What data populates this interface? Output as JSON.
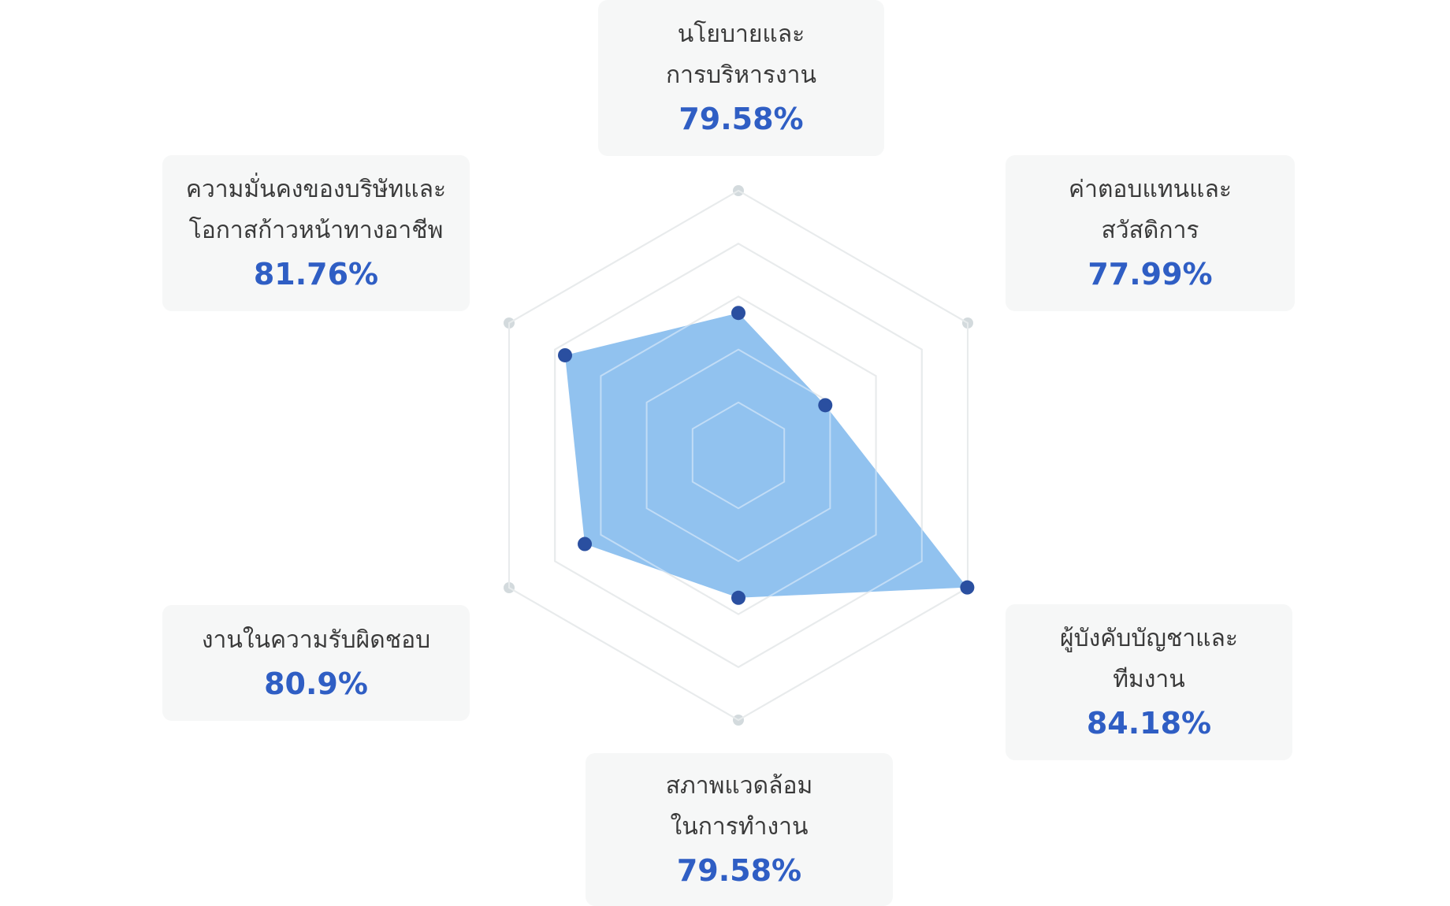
{
  "chart_data": {
    "type": "radar",
    "categories": [
      [
        "นโยบายและ",
        "การบริหารงาน"
      ],
      [
        "ค่าตอบแทนและ",
        "สวัสดิการ"
      ],
      [
        "ผู้บังคับบัญชาและ",
        "ทีมงาน"
      ],
      [
        "สภาพแวดล้อม",
        "ในการทำงาน"
      ],
      [
        "งานในความรับผิดชอบ"
      ],
      [
        "ความมั่นคงของบริษัทและ",
        "โอกาสก้าวหน้าทางอาชีพ"
      ]
    ],
    "values": [
      79.58,
      77.99,
      84.18,
      79.58,
      80.9,
      81.76
    ],
    "value_labels": [
      "79.58%",
      "77.99%",
      "84.18%",
      "79.58%",
      "80.9%",
      "81.76%"
    ],
    "rlim": [
      74.2,
      84.2
    ],
    "rticks": [
      76.2,
      78.2,
      80.2,
      82.2,
      84.2
    ],
    "color": "#8bbfee",
    "point_color": "#2a4fa0",
    "label_color": "#2f5ec4"
  }
}
